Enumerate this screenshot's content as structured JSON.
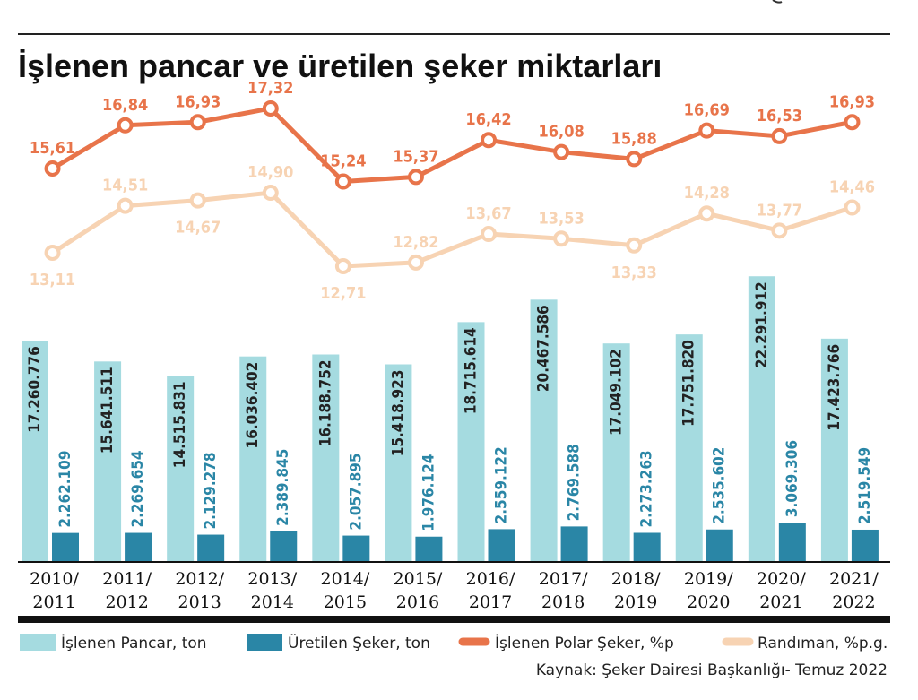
{
  "chart_data": {
    "type": "bar",
    "title": "İşlenen pancar ve üretilen şeker miktarları",
    "categories": [
      "2010/\n2011",
      "2011/\n2012",
      "2012/\n2013",
      "2013/\n2014",
      "2014/\n2015",
      "2015/\n2016",
      "2016/\n2017",
      "2017/\n2018",
      "2018/\n2019",
      "2019/\n2020",
      "2020/\n2021",
      "2021/\n2022"
    ],
    "series": [
      {
        "name": "İşlenen Pancar, ton",
        "type": "bar",
        "color": "#a5dbe0",
        "values": [
          17260776,
          15641511,
          14515831,
          16036402,
          16188752,
          15418923,
          18715614,
          20467586,
          17049102,
          17751820,
          22291912,
          17423766
        ],
        "labels": [
          "17.260.776",
          "15.641.511",
          "14.515.831",
          "16.036.402",
          "16.188.752",
          "15.418.923",
          "18.715.614",
          "20.467.586",
          "17.049.102",
          "17.751.820",
          "22.291.912",
          "17.423.766"
        ]
      },
      {
        "name": "Üretilen Şeker, ton",
        "type": "bar",
        "color": "#2a86a6",
        "values": [
          2262109,
          2269654,
          2129278,
          2389845,
          2057895,
          1976124,
          2559122,
          2769588,
          2273263,
          2535602,
          3069306,
          2519549
        ],
        "labels": [
          "2.262.109",
          "2.269.654",
          "2.129.278",
          "2.389.845",
          "2.057.895",
          "1.976.124",
          "2.559.122",
          "2.769.588",
          "2.273.263",
          "2.535.602",
          "3.069.306",
          "2.519.549"
        ]
      },
      {
        "name": "İşlenen Polar Şeker, %p",
        "type": "line",
        "color": "#e8744a",
        "values": [
          15.61,
          16.84,
          16.93,
          17.32,
          15.24,
          15.37,
          16.42,
          16.08,
          15.88,
          16.69,
          16.53,
          16.93
        ],
        "labels": [
          "15,61",
          "16,84",
          "16,93",
          "17,32",
          "15,24",
          "15,37",
          "16,42",
          "16,08",
          "15,88",
          "16,69",
          "16,53",
          "16,93"
        ]
      },
      {
        "name": "Randıman, %p.g.",
        "type": "line",
        "color": "#f7d3b3",
        "values": [
          13.11,
          14.51,
          14.67,
          14.9,
          12.71,
          12.82,
          13.67,
          13.53,
          13.33,
          14.28,
          13.77,
          14.46
        ],
        "labels": [
          "13,11",
          "14,51",
          "14,67",
          "14,90",
          "12,71",
          "12,82",
          "13,67",
          "13,53",
          "13,33",
          "14,28",
          "13,77",
          "14,46"
        ]
      }
    ],
    "legend_placement": "bottom",
    "grid": false,
    "source": "Kaynak: Şeker Dairesi Başkanlığı- Temuz 2022"
  }
}
